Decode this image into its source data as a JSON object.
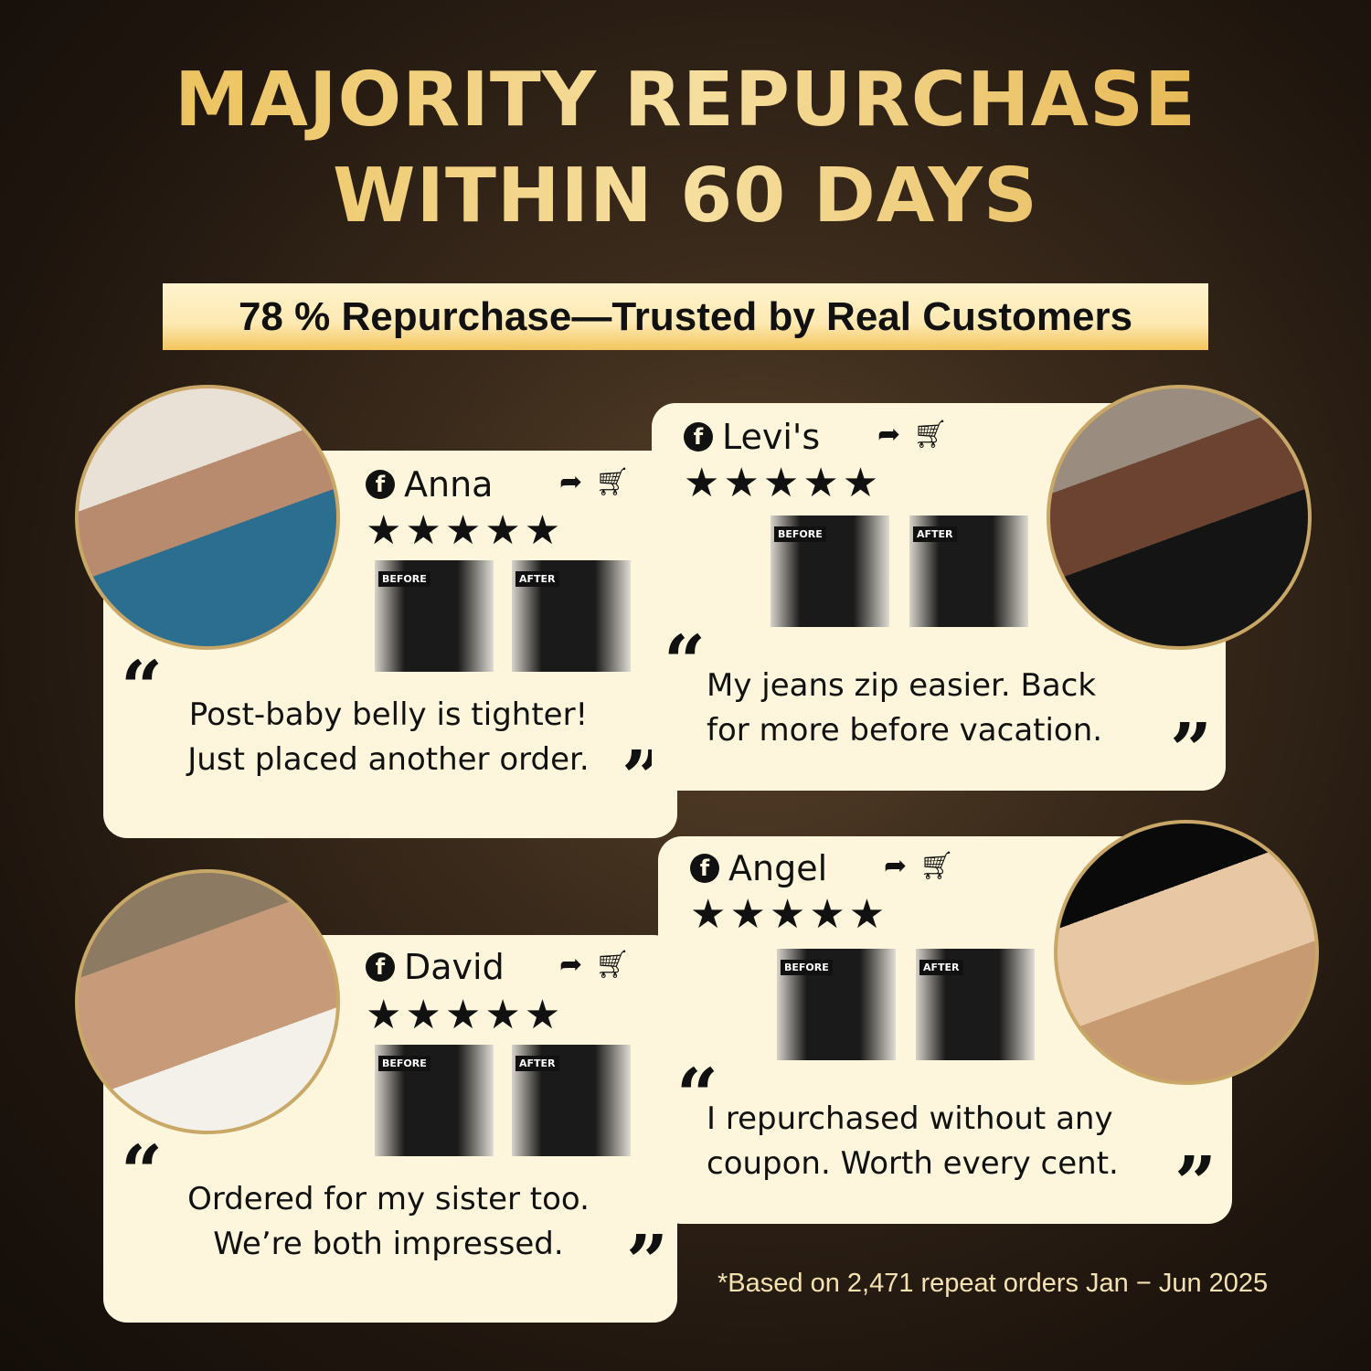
{
  "headline": {
    "line1": "MAJORITY REPURCHASE",
    "line2": "WITHIN 60 DAYS"
  },
  "banner": "78 % Repurchase—Trusted by Real Customers",
  "before_label": "BEFORE",
  "after_label": "AFTER",
  "stars": "★★★★★",
  "icons": {
    "social": "facebook-icon",
    "share": "share-icon",
    "cart": "cart-icon"
  },
  "reviews": [
    {
      "name": "Anna",
      "rating": 5,
      "quote": [
        "Post-baby belly is tighter!",
        "Just placed another order."
      ]
    },
    {
      "name": "Levi's",
      "rating": 5,
      "quote": [
        "My jeans zip easier. Back",
        "for more before vacation."
      ]
    },
    {
      "name": "Angel",
      "rating": 5,
      "quote": [
        "I repurchased without any",
        "coupon. Worth every cent."
      ]
    },
    {
      "name": "David",
      "rating": 5,
      "quote": [
        "Ordered for my sister too.",
        "We’re both impressed."
      ]
    }
  ],
  "footnote": "*Based on 2,471 repeat orders Jan − Jun 2025",
  "colors": {
    "gold": "#e9b94a",
    "card": "#fdf6dc",
    "text": "#111111"
  }
}
